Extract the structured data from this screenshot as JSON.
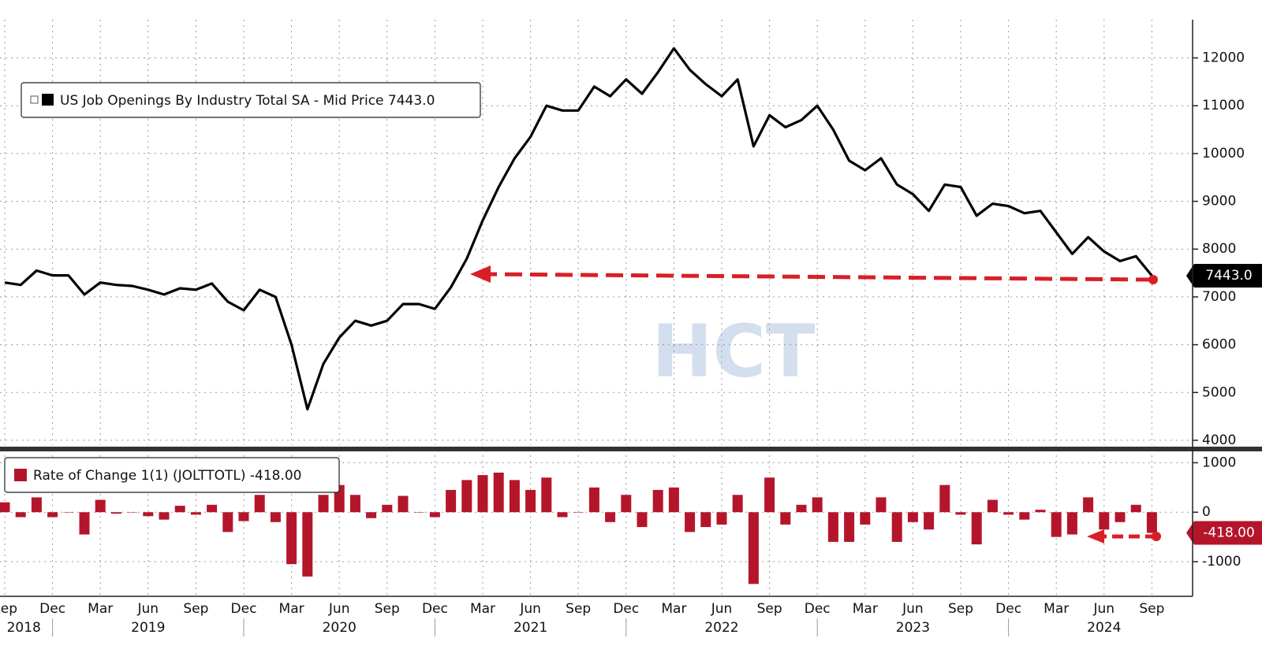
{
  "chart_data": [
    {
      "type": "line",
      "categories": [
        "Sep",
        null,
        null,
        "Dec",
        null,
        null,
        "Mar",
        null,
        null,
        "Jun",
        null,
        null,
        "Sep",
        null,
        null,
        "Dec",
        null,
        null,
        "Mar",
        null,
        null,
        "Jun",
        null,
        null,
        "Sep",
        null,
        null,
        "Dec",
        null,
        null,
        "Mar",
        null,
        null,
        "Jun",
        null,
        null,
        "Sep",
        null,
        null,
        "Dec",
        null,
        null,
        "Mar",
        null,
        null,
        "Jun",
        null,
        null,
        "Sep",
        null,
        null,
        "Dec",
        null,
        null,
        "Mar",
        null,
        null,
        "Jun",
        null,
        null,
        "Sep",
        null,
        null,
        "Dec",
        null,
        null,
        "Mar",
        null,
        null,
        "Jun",
        null,
        null,
        "Sep"
      ],
      "years": [
        "2018",
        "2019",
        "2020",
        "2021",
        "2022",
        "2023",
        "2024"
      ],
      "series": [
        {
          "name": "US Job Openings By Industry Total SA - Mid Price 7443.0",
          "color": "#000000",
          "values": [
            7300,
            7250,
            7550,
            7450,
            7450,
            7050,
            7300,
            7250,
            7230,
            7150,
            7050,
            7180,
            7150,
            7280,
            6900,
            6720,
            7150,
            7000,
            6000,
            4650,
            5600,
            6150,
            6500,
            6400,
            6500,
            6850,
            6850,
            6750,
            7200,
            7800,
            8600,
            9300,
            9900,
            10350,
            11000,
            10900,
            10900,
            11400,
            11200,
            11550,
            11250,
            11700,
            12200,
            11750,
            11450,
            11200,
            11550,
            10150,
            10800,
            10550,
            10700,
            11000,
            10500,
            9850,
            9650,
            9900,
            9350,
            9150,
            8800,
            9350,
            9300,
            8700,
            8950,
            8900,
            8750,
            8800,
            8350,
            7900,
            8250,
            7950,
            7750,
            7850,
            7443
          ],
          "value_labels": [
            null,
            null,
            null,
            null,
            null,
            null,
            null,
            null,
            null,
            null,
            null,
            null,
            null,
            null,
            null,
            null,
            null,
            null,
            null,
            null,
            null,
            null,
            null,
            null,
            null,
            null,
            null,
            null,
            null,
            null,
            null,
            null,
            null,
            null,
            null,
            null,
            null,
            null,
            null,
            null,
            null,
            null,
            null,
            null,
            null,
            null,
            null,
            null,
            null,
            null,
            null,
            null,
            null,
            null,
            null,
            null,
            null,
            null,
            null,
            null,
            null,
            null,
            null,
            null,
            null,
            null,
            null,
            null,
            null,
            null,
            null,
            null,
            "7443.0"
          ]
        }
      ],
      "ylim": [
        3900,
        12800
      ],
      "yticks": [
        4000,
        5000,
        6000,
        7000,
        8000,
        9000,
        10000,
        11000,
        12000
      ],
      "grid": true,
      "watermark": "HCT"
    },
    {
      "type": "bar",
      "series": [
        {
          "name": "Rate of Change 1(1) (JOLTTOTL) -418.00",
          "color": "#b5152b",
          "values": [
            200,
            -100,
            300,
            -100,
            0,
            -450,
            250,
            -30,
            0,
            -80,
            -150,
            130,
            -50,
            150,
            -400,
            -180,
            350,
            -200,
            -1050,
            -1300,
            350,
            550,
            350,
            -120,
            150,
            330,
            0,
            -100,
            450,
            650,
            750,
            800,
            650,
            450,
            700,
            -100,
            0,
            500,
            -200,
            350,
            -300,
            450,
            500,
            -400,
            -300,
            -250,
            350,
            -1450,
            700,
            -250,
            150,
            300,
            -600,
            -600,
            -250,
            300,
            -600,
            -200,
            -350,
            550,
            -50,
            -650,
            250,
            -50,
            -150,
            50,
            -500,
            -450,
            300,
            -350,
            -200,
            150,
            -418
          ],
          "value_labels": [
            null,
            null,
            null,
            null,
            null,
            null,
            null,
            null,
            null,
            null,
            null,
            null,
            null,
            null,
            null,
            null,
            null,
            null,
            null,
            null,
            null,
            null,
            null,
            null,
            null,
            null,
            null,
            null,
            null,
            null,
            null,
            null,
            null,
            null,
            null,
            null,
            null,
            null,
            null,
            null,
            null,
            null,
            null,
            null,
            null,
            null,
            null,
            null,
            null,
            null,
            null,
            null,
            null,
            null,
            null,
            null,
            null,
            null,
            null,
            null,
            null,
            null,
            null,
            null,
            null,
            null,
            null,
            null,
            null,
            null,
            null,
            null,
            "-418.00"
          ]
        }
      ],
      "ylim": [
        -1700,
        1150
      ],
      "yticks": [
        -1000,
        0,
        1000
      ],
      "grid": true
    }
  ]
}
